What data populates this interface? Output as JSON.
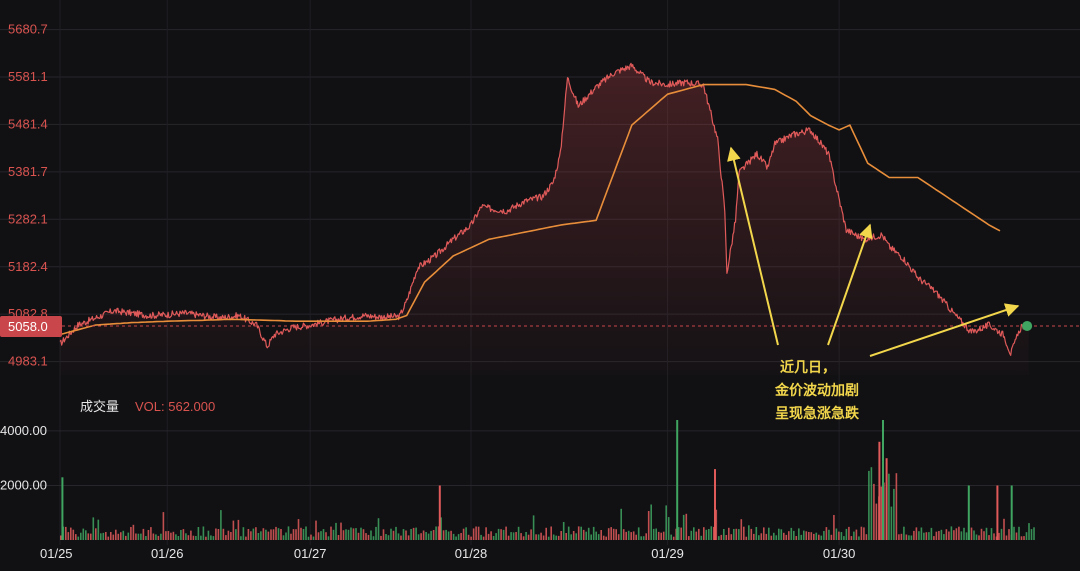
{
  "chart_data": [
    {
      "type": "line",
      "series": [
        {
          "color": "#e05a5a",
          "x": [
            0,
            0.25,
            0.5,
            0.75,
            1,
            1.25,
            1.5,
            1.75,
            2,
            2.25,
            2.5,
            2.75,
            2.9,
            3,
            3.25,
            3.5,
            3.75,
            4,
            4.25,
            4.5,
            4.75,
            4.85,
            5,
            5.25,
            5.5,
            5.75,
            5.9,
            6,
            6.25,
            6.5,
            6.75,
            6.9,
            7,
            7.1,
            7.25,
            7.5,
            7.75,
            8,
            8.25,
            8.5,
            8.75,
            9,
            9.2,
            9.3,
            9.33,
            9.45,
            9.5,
            9.75,
            9.9,
            10,
            10.25,
            10.5,
            10.75,
            11,
            11.25,
            11.5,
            11.6,
            11.8,
            12,
            12.25,
            12.5,
            12.75,
            13,
            13.2,
            13.3,
            13.45,
            13.55
          ],
          "y": [
            5020,
            5060,
            5075,
            5090,
            5085,
            5080,
            5082,
            5085,
            5080,
            5075,
            5080,
            5060,
            5015,
            5040,
            5055,
            5060,
            5068,
            5075,
            5080,
            5077,
            5078,
            5110,
            5180,
            5205,
            5240,
            5270,
            5310,
            5305,
            5300,
            5320,
            5330,
            5360,
            5420,
            5580,
            5520,
            5560,
            5590,
            5605,
            5570,
            5565,
            5570,
            5565,
            5450,
            5300,
            5170,
            5280,
            5380,
            5420,
            5390,
            5440,
            5460,
            5470,
            5420,
            5260,
            5240,
            5250,
            5225,
            5200,
            5160,
            5130,
            5085,
            5045,
            5060,
            5040,
            5000,
            5058,
            5058
          ]
        },
        {
          "color": "#e88e3a",
          "x": [
            0,
            0.5,
            1,
            1.5,
            2,
            2.4,
            2.9,
            3.3,
            3.8,
            4.3,
            4.7,
            4.85,
            5.1,
            5.5,
            6,
            6.5,
            7,
            7.25,
            7.5,
            8,
            8.5,
            9,
            9.3,
            9.6,
            10,
            10.3,
            10.5,
            10.75,
            10.9,
            11.05,
            11.3,
            11.6,
            12,
            12.3,
            12.6,
            12.9,
            13,
            13.15
          ],
          "y": [
            5040,
            5060,
            5065,
            5068,
            5070,
            5072,
            5070,
            5068,
            5068,
            5068,
            5072,
            5080,
            5150,
            5205,
            5240,
            5255,
            5270,
            5275,
            5280,
            5480,
            5545,
            5565,
            5565,
            5565,
            5555,
            5530,
            5500,
            5480,
            5470,
            5480,
            5400,
            5370,
            5370,
            5340,
            5310,
            5280,
            5270,
            5258
          ]
        }
      ],
      "x": [
        0,
        1,
        2,
        3,
        4,
        5,
        6,
        7
      ],
      "xtick_labels": [
        "01/25",
        "01/26",
        "01/27",
        "01/28",
        "01/29",
        "01/30"
      ],
      "xtick_positions": [
        0,
        1.5,
        3.5,
        5.75,
        8.5,
        10.9
      ],
      "yticks": [
        5680.7,
        5581.1,
        5481.4,
        5381.7,
        5282.1,
        5182.4,
        5082.8,
        4983.1
      ],
      "ylim": [
        4955,
        5705
      ],
      "xlim": [
        0,
        13.85
      ],
      "current_price": "5058.0",
      "current_price_value": 5058.0,
      "annotation": [
        "近几日，",
        "金价波动加剧",
        "呈现急涨急跌"
      ]
    },
    {
      "type": "bar",
      "title": "成交量",
      "volume_label": "VOL: 562.000",
      "yticks": [
        "4000.00",
        "2000.00"
      ],
      "ytick_values": [
        4000,
        2000
      ],
      "ylim": [
        0,
        4400
      ],
      "spikes": [
        {
          "x": 0.02,
          "value": 2300,
          "color": "#3fa560"
        },
        {
          "x": 5.3,
          "value": 2000,
          "color": "#e05a5a"
        },
        {
          "x": 8.62,
          "value": 4400,
          "color": "#3fa560"
        },
        {
          "x": 9.15,
          "value": 2600,
          "color": "#e05a5a"
        },
        {
          "x": 11.5,
          "value": 4400,
          "color": "#3fa560"
        },
        {
          "x": 11.45,
          "value": 3600,
          "color": "#e05a5a"
        },
        {
          "x": 11.55,
          "value": 3000,
          "color": "#e05a5a"
        },
        {
          "x": 12.7,
          "value": 2000,
          "color": "#3fa560"
        },
        {
          "x": 13.1,
          "value": 2000,
          "color": "#e05a5a"
        },
        {
          "x": 13.3,
          "value": 2000,
          "color": "#3fa560"
        }
      ]
    }
  ],
  "colors": {
    "background": "#111114",
    "price_line": "#e05a5a",
    "ma_line": "#e88e3a",
    "volume_up": "#3fa560",
    "volume_down": "#e05a5a",
    "annotation": "#f2d64b",
    "current_price_badge": "#c9464a"
  }
}
